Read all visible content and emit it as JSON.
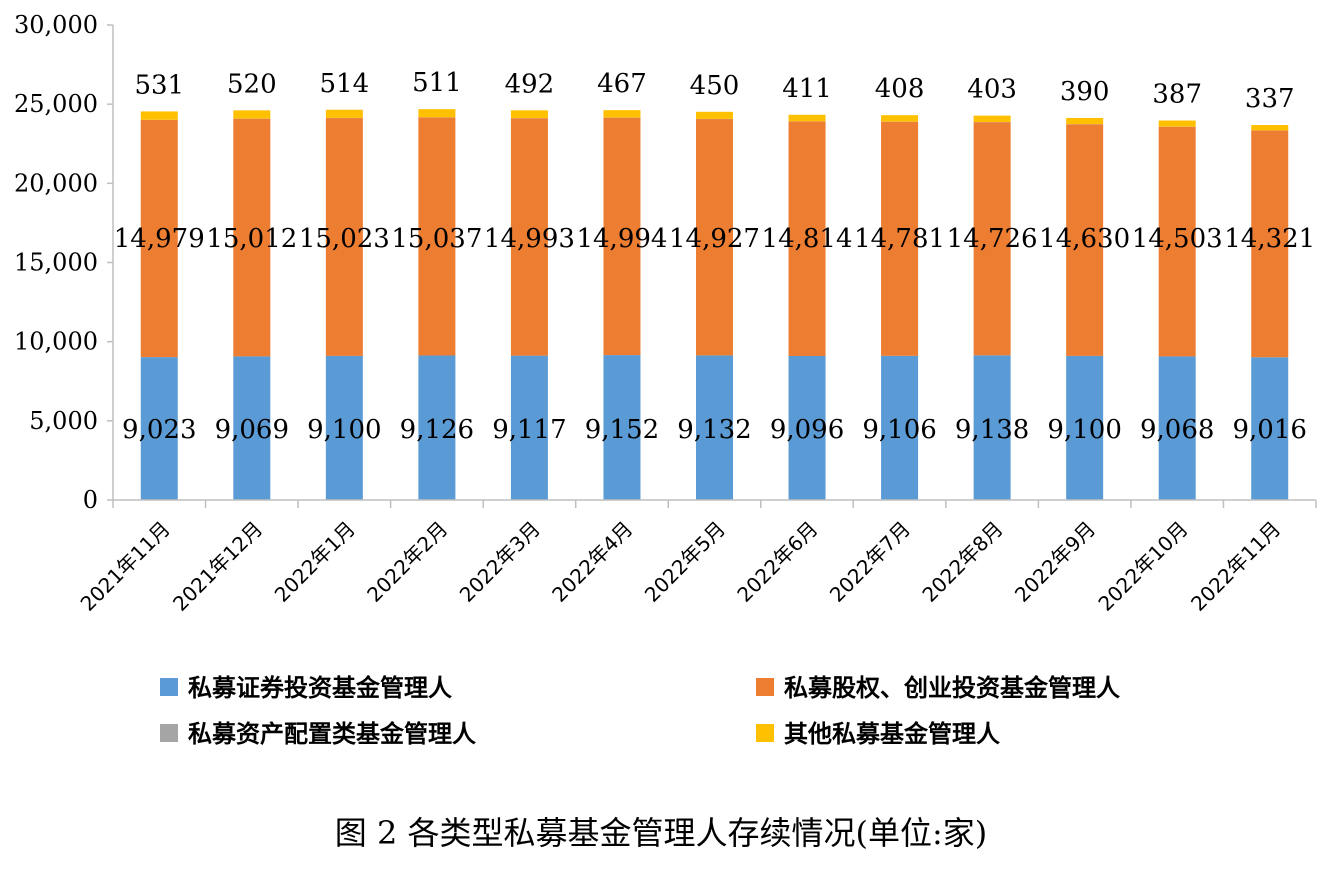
{
  "chart_data": {
    "type": "bar",
    "stacked": true,
    "categories": [
      "2021年11月",
      "2021年12月",
      "2022年1月",
      "2022年2月",
      "2022年3月",
      "2022年4月",
      "2022年5月",
      "2022年6月",
      "2022年7月",
      "2022年8月",
      "2022年9月",
      "2022年10月",
      "2022年11月"
    ],
    "series": [
      {
        "name": "私募证券投资基金管理人",
        "color": "#5B9BD5",
        "values": [
          9023,
          9069,
          9100,
          9126,
          9117,
          9152,
          9132,
          9096,
          9106,
          9138,
          9100,
          9068,
          9016
        ],
        "labels": [
          "9,023",
          "9,069",
          "9,100",
          "9,126",
          "9,117",
          "9,152",
          "9,132",
          "9,096",
          "9,106",
          "9,138",
          "9,100",
          "9,068",
          "9,016"
        ]
      },
      {
        "name": "私募股权、创业投资基金管理人",
        "color": "#ED7D31",
        "values": [
          14979,
          15012,
          15023,
          15037,
          14993,
          14994,
          14927,
          14814,
          14781,
          14726,
          14630,
          14503,
          14321
        ],
        "labels": [
          "14,979",
          "15,012",
          "15,023",
          "15,037",
          "14,993",
          "14,994",
          "14,927",
          "14,814",
          "14,781",
          "14,726",
          "14,630",
          "14,503",
          "14,321"
        ]
      },
      {
        "name": "私募资产配置类基金管理人",
        "color": "#A5A5A5",
        "values": [
          9,
          9,
          9,
          9,
          9,
          9,
          9,
          9,
          9,
          9,
          9,
          9,
          9
        ],
        "labels": []
      },
      {
        "name": "其他私募基金管理人",
        "color": "#FFC000",
        "values": [
          531,
          520,
          514,
          511,
          492,
          467,
          450,
          411,
          408,
          403,
          390,
          387,
          337
        ],
        "labels": [
          "531",
          "520",
          "514",
          "511",
          "492",
          "467",
          "450",
          "411",
          "408",
          "403",
          "390",
          "387",
          "337"
        ]
      }
    ],
    "ylim": [
      0,
      30000
    ],
    "yticks": [
      0,
      5000,
      10000,
      15000,
      20000,
      25000,
      30000
    ],
    "ytick_labels": [
      "0",
      "5,000",
      "10,000",
      "15,000",
      "20,000",
      "25,000",
      "30,000"
    ],
    "grid": false,
    "legend_position": "bottom",
    "caption": "图 2  各类型私募基金管理人存续情况(单位:家)"
  }
}
